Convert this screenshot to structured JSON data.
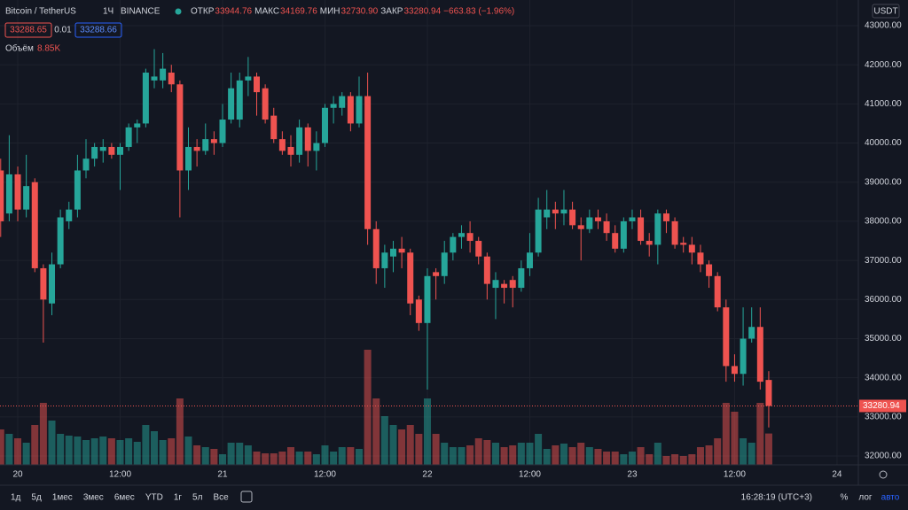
{
  "header": {
    "title": "Bitcoin / TetherUS",
    "interval": "1Ч",
    "exchange": "BINANCE",
    "readout": [
      {
        "name": "ОТКР",
        "value": "33944.76"
      },
      {
        "name": "МАКС",
        "value": "34169.76"
      },
      {
        "name": "МИН",
        "value": "32730.90"
      },
      {
        "name": "ЗАКР",
        "value": "33280.94"
      }
    ],
    "change": "−663.83 (−1.96%)",
    "bid": "33288.65",
    "spread": "0.01",
    "ask": "33288.66",
    "currency": "USDT"
  },
  "chart_data": {
    "type": "candlestick",
    "up_color": "#26a69a",
    "down_color": "#ef5350",
    "grid": true,
    "x": [
      -2,
      -1,
      0,
      1,
      2,
      3,
      4,
      5,
      6,
      7,
      8,
      9,
      10,
      11,
      12,
      13,
      14,
      15,
      16,
      17,
      18,
      19,
      20,
      21,
      22,
      23,
      24,
      25,
      26,
      27,
      28,
      29,
      30,
      31,
      32,
      33,
      34,
      35,
      36,
      37,
      38,
      39,
      40,
      41,
      42,
      43,
      44,
      45,
      46,
      47,
      48,
      49,
      50,
      51,
      52,
      53,
      54,
      55,
      56,
      57,
      58,
      59,
      60,
      61,
      62,
      63,
      64,
      65,
      66,
      67,
      68,
      69,
      70,
      71,
      72,
      73,
      74,
      75,
      76,
      77,
      78,
      79,
      80,
      81,
      82,
      83,
      84,
      85,
      86,
      87,
      88
    ],
    "open": [
      39300,
      38200,
      39200,
      38300,
      39000,
      36800,
      35900,
      36900,
      38000,
      38300,
      39300,
      39600,
      39800,
      39900,
      39700,
      39900,
      40400,
      40500,
      41600,
      41600,
      41800,
      41500,
      39300,
      39900,
      39800,
      40100,
      40000,
      40600,
      40600,
      41600,
      41700,
      41400,
      40700,
      40100,
      39900,
      39700,
      40400,
      39800,
      40000,
      40900,
      40900,
      41200,
      40500,
      41200,
      37800,
      36800,
      37100,
      37300,
      37200,
      36000,
      35400,
      36700,
      36600,
      37200,
      37600,
      37700,
      37500,
      37100,
      36300,
      36400,
      36500,
      36300,
      36800,
      37200,
      38100,
      38300,
      38200,
      38300,
      37900,
      37800,
      38100,
      38000,
      37700,
      37300,
      38000,
      38100,
      37500,
      37400,
      38200,
      38000,
      37450,
      37400,
      37200,
      36900,
      36600,
      35800,
      34300,
      34100,
      35000,
      35300,
      33944.76
    ],
    "high": [
      39600,
      40200,
      39400,
      39700,
      39100,
      36900,
      37200,
      38300,
      38500,
      39700,
      40100,
      40000,
      40100,
      40000,
      40000,
      40500,
      40600,
      41900,
      42400,
      42300,
      42000,
      41600,
      40400,
      40100,
      40500,
      40300,
      41000,
      41800,
      41800,
      42200,
      41800,
      41500,
      40900,
      40300,
      40200,
      40600,
      40500,
      40300,
      41000,
      41200,
      41300,
      41300,
      41700,
      41800,
      38000,
      37400,
      37500,
      37600,
      37300,
      36100,
      36800,
      36800,
      37500,
      37700,
      37900,
      38000,
      37600,
      37200,
      36700,
      36500,
      36600,
      37000,
      37700,
      38600,
      38800,
      38500,
      38800,
      38500,
      38100,
      38300,
      38300,
      38200,
      37900,
      38100,
      38300,
      38300,
      37700,
      38300,
      38300,
      38100,
      37600,
      37600,
      37400,
      37000,
      36700,
      36000,
      34600,
      35800,
      35800,
      35800,
      34169.76
    ],
    "low": [
      37600,
      38000,
      38000,
      38100,
      36700,
      34900,
      35600,
      36800,
      37800,
      38100,
      39100,
      39400,
      39500,
      39600,
      38800,
      39800,
      40000,
      40400,
      41400,
      41400,
      41300,
      38100,
      38800,
      39400,
      39700,
      39700,
      39900,
      40500,
      40400,
      41200,
      40700,
      40500,
      40000,
      39700,
      39400,
      39500,
      39400,
      39300,
      39900,
      40500,
      40700,
      40300,
      40400,
      37400,
      36400,
      36300,
      36700,
      36800,
      35600,
      35200,
      33700,
      36000,
      36400,
      37000,
      37300,
      37200,
      36900,
      36000,
      35500,
      35900,
      35800,
      36200,
      36600,
      37100,
      37800,
      37800,
      37900,
      37800,
      37000,
      37700,
      37800,
      37500,
      37200,
      37200,
      37800,
      37400,
      37100,
      36900,
      37700,
      37300,
      37200,
      36900,
      36700,
      36300,
      35700,
      33900,
      33900,
      33800,
      34900,
      33700,
      32730.9
    ],
    "close": [
      38000,
      39200,
      38300,
      38900,
      36800,
      36000,
      36900,
      38100,
      38300,
      39300,
      39600,
      39900,
      39900,
      39700,
      39900,
      40400,
      40500,
      41800,
      41700,
      41900,
      41500,
      39300,
      39900,
      39800,
      40100,
      40000,
      40600,
      41400,
      41600,
      41700,
      41300,
      40600,
      40100,
      39800,
      39700,
      40400,
      39800,
      40000,
      40900,
      41000,
      41200,
      40500,
      41200,
      37800,
      36800,
      37200,
      37300,
      37200,
      35900,
      35400,
      36600,
      36600,
      37200,
      37600,
      37700,
      37500,
      37100,
      36400,
      36500,
      36300,
      36300,
      36800,
      37200,
      38300,
      38300,
      38200,
      38300,
      37900,
      37800,
      38100,
      38000,
      37700,
      37300,
      38000,
      38100,
      37500,
      37400,
      38200,
      38000,
      37400,
      37400,
      37200,
      36900,
      36600,
      35800,
      34300,
      34100,
      35000,
      35300,
      33900,
      33280.94
    ],
    "volume": [
      10000,
      8750,
      7500,
      6250,
      11250,
      17500,
      12500,
      8750,
      8250,
      8000,
      7000,
      7500,
      8000,
      7500,
      7000,
      7500,
      6500,
      11250,
      9500,
      7000,
      7500,
      18750,
      8000,
      5500,
      5000,
      4500,
      3000,
      6250,
      6250,
      5500,
      3750,
      3250,
      3250,
      3750,
      5000,
      3750,
      3750,
      3000,
      5500,
      3750,
      5000,
      5000,
      4500,
      32500,
      18750,
      13750,
      11250,
      10000,
      11250,
      8750,
      18750,
      8750,
      6250,
      5000,
      5000,
      5500,
      7500,
      7000,
      6250,
      5000,
      5500,
      6250,
      6250,
      8750,
      4500,
      5500,
      6000,
      5000,
      6250,
      5000,
      4500,
      3750,
      3750,
      3000,
      3750,
      5000,
      3000,
      6250,
      2500,
      3000,
      2500,
      3000,
      5000,
      5500,
      7500,
      17500,
      15000,
      7500,
      6250,
      17500,
      8850
    ],
    "volume_name": "Объём",
    "volume_readout": "8.85K",
    "volume_lim": [
      0,
      50000
    ],
    "xlim": [
      -2.08,
      98.5
    ],
    "xticks": [
      {
        "value": 0,
        "label": "20"
      },
      {
        "value": 12,
        "label": "12:00"
      },
      {
        "value": 24,
        "label": "21"
      },
      {
        "value": 36,
        "label": "12:00"
      },
      {
        "value": 48,
        "label": "22"
      },
      {
        "value": 60,
        "label": "12:00"
      },
      {
        "value": 72,
        "label": "23"
      },
      {
        "value": 84,
        "label": "12:00"
      },
      {
        "value": 96,
        "label": "24"
      }
    ],
    "ylim": [
      31775,
      43656
    ],
    "yticks": [
      {
        "value": 32000,
        "label": "32000.00"
      },
      {
        "value": 33000,
        "label": "33000.00"
      },
      {
        "value": 34000,
        "label": "34000.00"
      },
      {
        "value": 35000,
        "label": "35000.00"
      },
      {
        "value": 36000,
        "label": "36000.00"
      },
      {
        "value": 37000,
        "label": "37000.00"
      },
      {
        "value": 38000,
        "label": "38000.00"
      },
      {
        "value": 39000,
        "label": "39000.00"
      },
      {
        "value": 40000,
        "label": "40000.00"
      },
      {
        "value": 41000,
        "label": "41000.00"
      },
      {
        "value": 42000,
        "label": "42000.00"
      },
      {
        "value": 43000,
        "label": "43000.00"
      }
    ]
  },
  "toolbar": {
    "ranges": [
      "1д",
      "5д",
      "1мес",
      "3мес",
      "6мес",
      "YTD",
      "1г",
      "5л",
      "Все"
    ],
    "clock": "16:28:19 (UTC+3)",
    "percent": "%",
    "log": "лог",
    "auto": "авто"
  }
}
